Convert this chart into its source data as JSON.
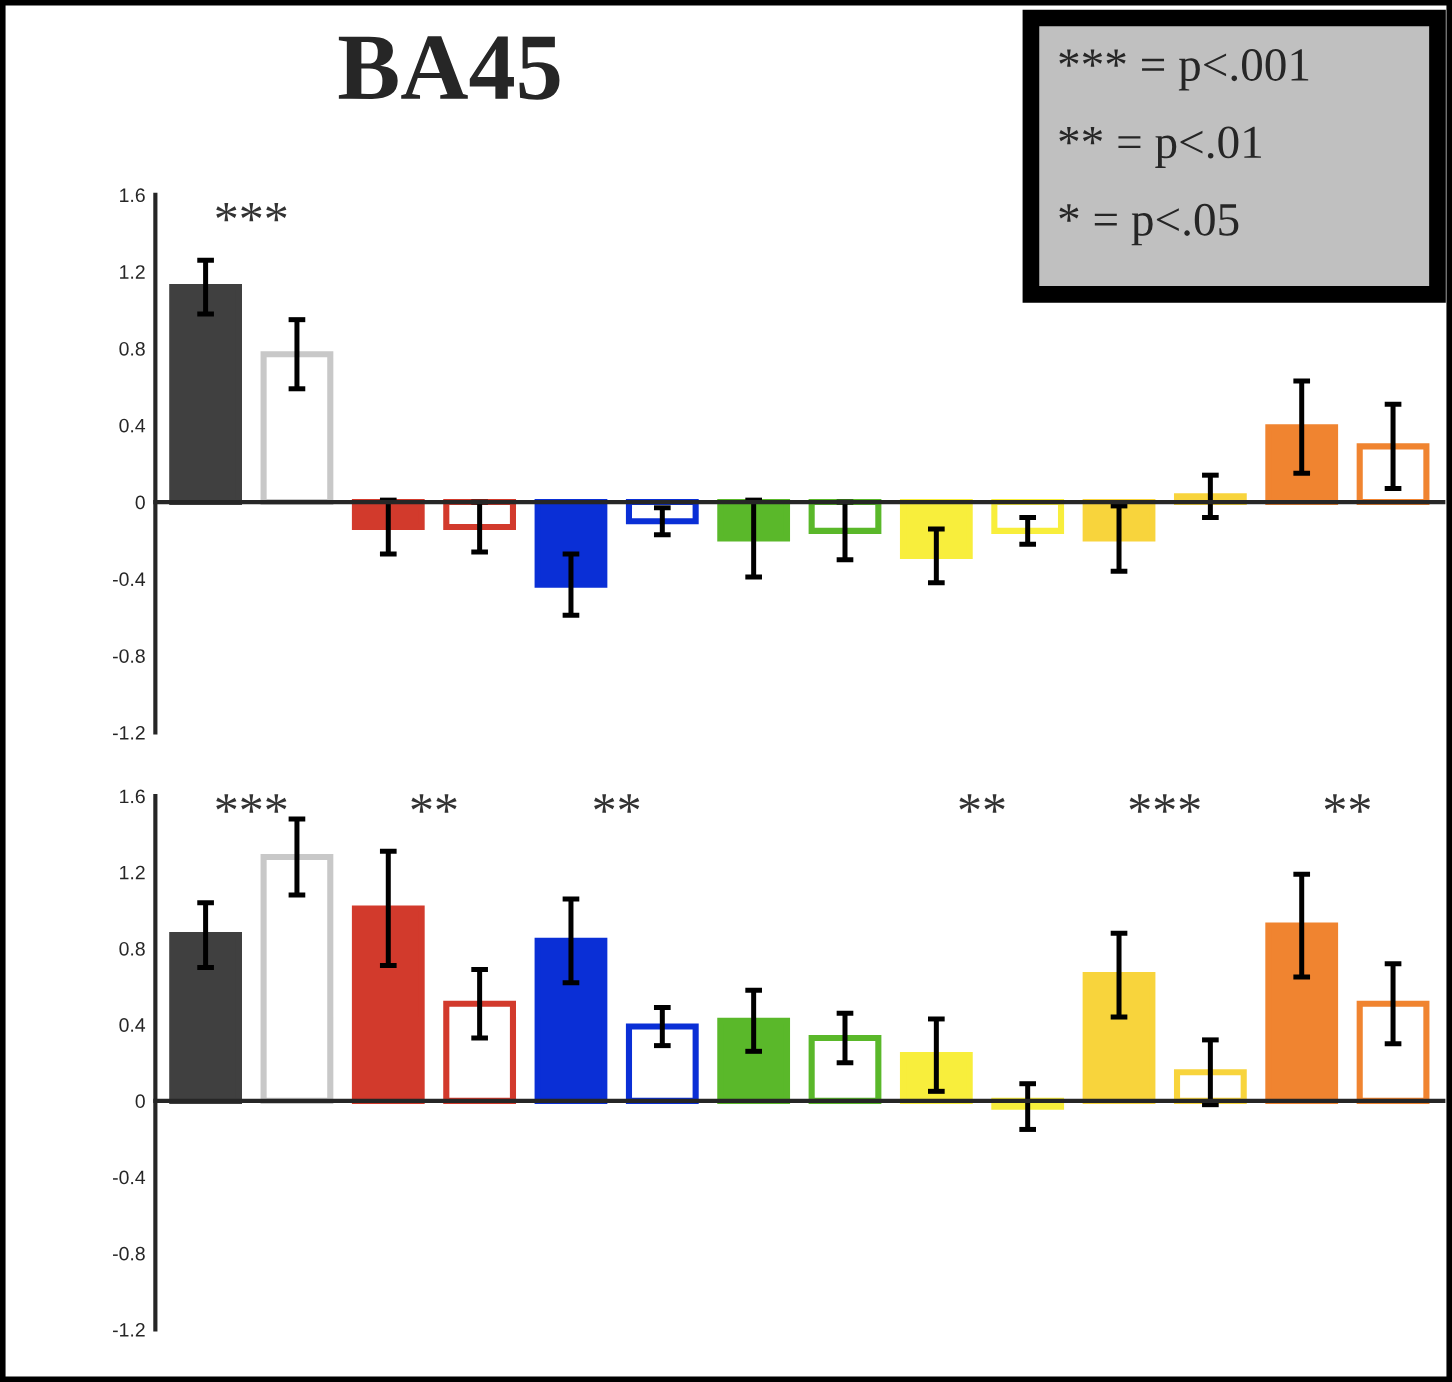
{
  "chart_data": [
    {
      "type": "bar",
      "title": "BA45",
      "categories": [
        null,
        null,
        null,
        null,
        null,
        null,
        null,
        null,
        null,
        null,
        null,
        null,
        null,
        null
      ],
      "series": [
        {
          "colors": [
            "#404040",
            null,
            "#d23a2c",
            null,
            "#0a2fd6",
            null,
            "#5ab82a",
            null,
            "#f8ee3c",
            null,
            "#f8d43c",
            null,
            "#f08430",
            null
          ],
          "values": [
            1.12,
            null,
            -0.13,
            null,
            -0.43,
            null,
            -0.19,
            null,
            -0.28,
            null,
            -0.19,
            null,
            0.39,
            null
          ],
          "errors": [
            0.14,
            null,
            0.14,
            null,
            0.16,
            null,
            0.2,
            null,
            0.14,
            null,
            0.17,
            null,
            0.24,
            null
          ]
        },
        {
          "colors": [
            null,
            "#c8c8c8",
            null,
            "#d23a2c",
            null,
            "#0a2fd6",
            null,
            "#5ab82a",
            null,
            "#f8ee3c",
            null,
            "#f8d43c",
            null,
            "#f08430"
          ],
          "values": [
            null,
            0.77,
            null,
            -0.13,
            null,
            -0.1,
            null,
            -0.15,
            null,
            -0.15,
            null,
            0.03,
            null,
            0.29
          ],
          "errors": [
            null,
            0.18,
            null,
            0.13,
            null,
            0.07,
            null,
            0.15,
            null,
            0.07,
            null,
            0.11,
            null,
            0.22
          ]
        }
      ],
      "ylim": [
        -1.2,
        1.6
      ],
      "yticks": [
        -1.2,
        -0.8,
        -0.4,
        0,
        0.4,
        0.8,
        1.2,
        1.6
      ],
      "tick_labels": "y",
      "annotations": [
        "*** = p<.001",
        "** = p<.01",
        "* = p<.05",
        "***"
      ]
    },
    {
      "type": "bar",
      "categories": [
        null,
        null,
        null,
        null,
        null,
        null,
        null,
        null,
        null,
        null,
        null,
        null,
        null,
        null
      ],
      "series": [
        {
          "colors": [
            "#404040",
            null,
            "#d23a2c",
            null,
            "#0a2fd6",
            null,
            "#5ab82a",
            null,
            "#f8ee3c",
            null,
            "#f8d43c",
            null,
            "#f08430",
            null
          ],
          "values": [
            0.87,
            null,
            1.01,
            null,
            0.84,
            null,
            0.42,
            null,
            0.24,
            null,
            0.66,
            null,
            0.92,
            null
          ],
          "errors": [
            0.17,
            null,
            0.3,
            null,
            0.22,
            null,
            0.16,
            null,
            0.19,
            null,
            0.22,
            null,
            0.27,
            null
          ]
        },
        {
          "colors": [
            null,
            "#c8c8c8",
            null,
            "#d23a2c",
            null,
            "#0a2fd6",
            null,
            "#5ab82a",
            null,
            "#f8ee3c",
            null,
            "#f8d43c",
            null,
            "#f08430"
          ],
          "values": [
            null,
            1.28,
            null,
            0.51,
            null,
            0.39,
            null,
            0.33,
            null,
            -0.03,
            null,
            0.15,
            null,
            0.51
          ],
          "errors": [
            null,
            0.2,
            null,
            0.18,
            null,
            0.1,
            null,
            0.13,
            null,
            0.12,
            null,
            0.17,
            null,
            0.21
          ]
        }
      ],
      "ylim": [
        -1.2,
        1.6
      ],
      "yticks": [
        -1.2,
        -0.8,
        -0.4,
        0,
        0.4,
        0.8,
        1.2,
        1.6
      ],
      "tick_labels": "y",
      "annotations": [
        "***",
        "**",
        "**",
        "**",
        "***",
        "**"
      ]
    }
  ]
}
